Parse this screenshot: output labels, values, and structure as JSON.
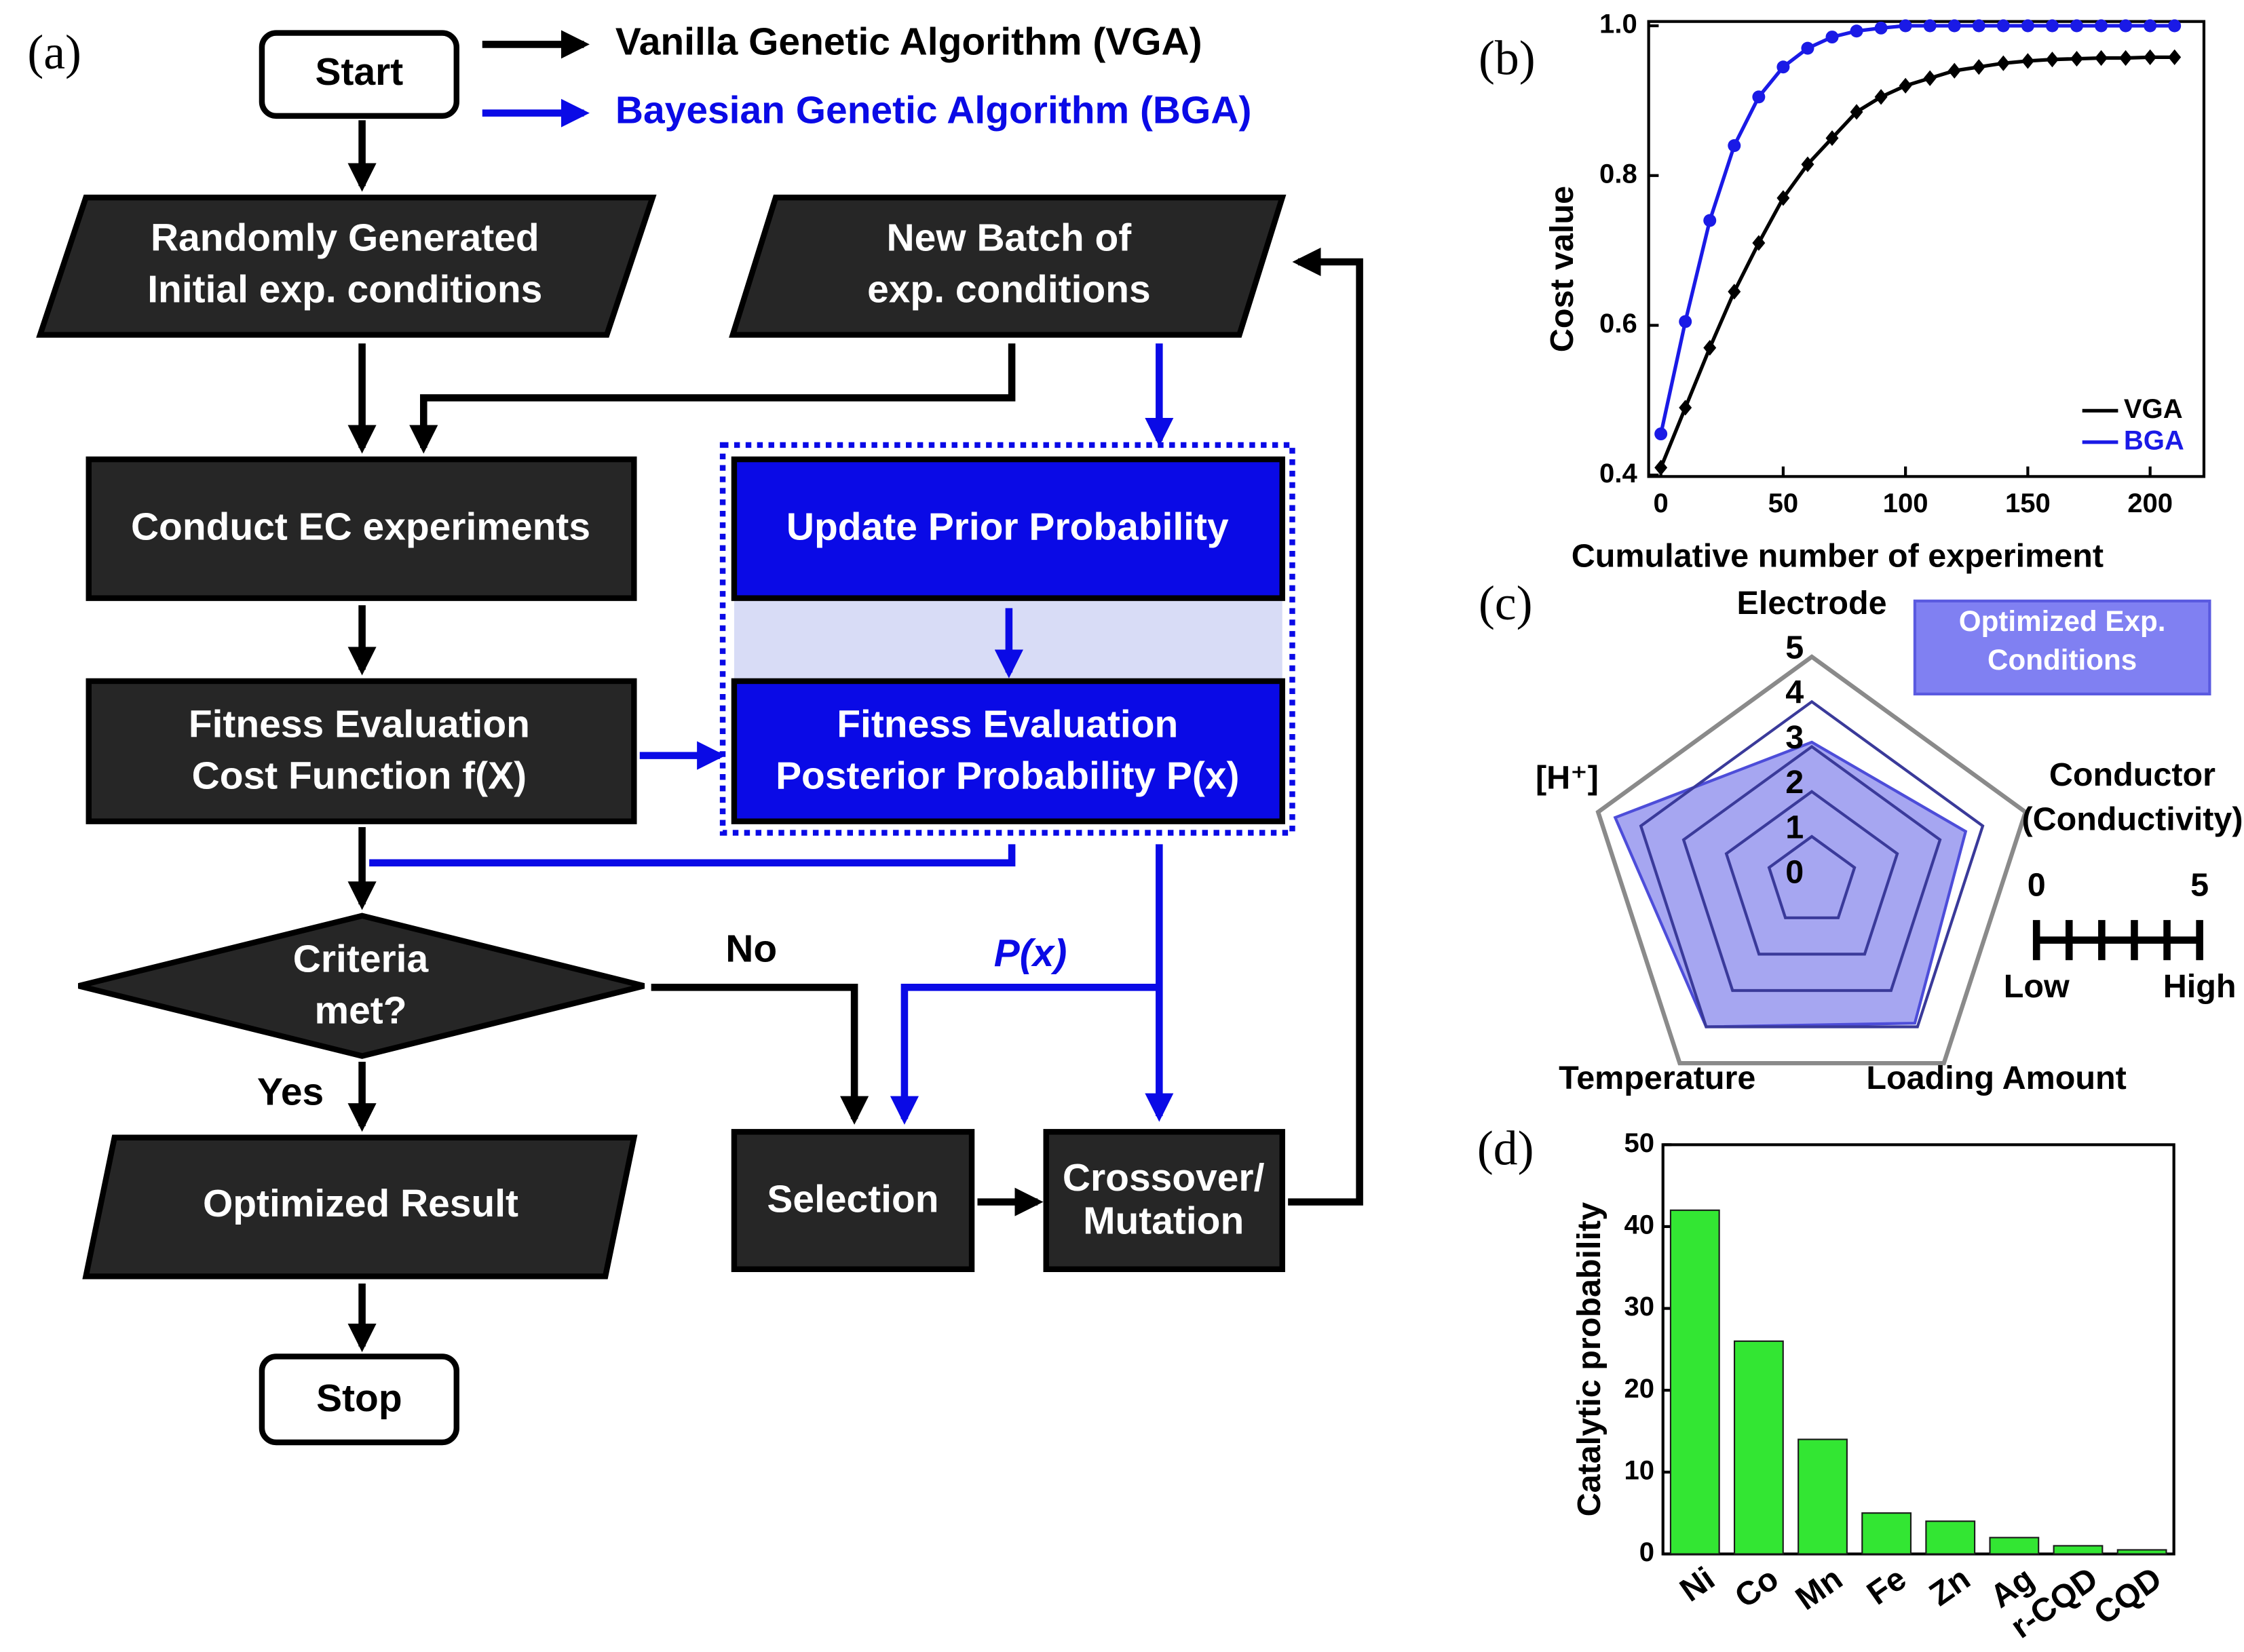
{
  "panel_labels": [
    "(a)",
    "(b)",
    "(c)",
    "(d)"
  ],
  "flowchart": {
    "legend": [
      {
        "label": "Vanilla Genetic Algorithm (VGA)",
        "color": "#000000"
      },
      {
        "label": "Bayesian Genetic Algorithm (BGA)",
        "color": "#0a0ae6"
      }
    ],
    "nodes": [
      {
        "lines": [
          "Start"
        ]
      },
      {
        "lines": [
          "Randomly Generated",
          "Initial exp. conditions"
        ]
      },
      {
        "lines": [
          "New Batch of",
          "exp. conditions"
        ]
      },
      {
        "lines": [
          "Conduct EC experiments"
        ]
      },
      {
        "lines": [
          "Update Prior Probability"
        ]
      },
      {
        "lines": [
          "Fitness Evaluation",
          "Cost Function f(X)"
        ]
      },
      {
        "lines": [
          "Fitness Evaluation",
          "Posterior Probability  P(x)"
        ]
      },
      {
        "lines": [
          "Criteria",
          "met?"
        ]
      },
      {
        "lines": [
          "Optimized Result"
        ]
      },
      {
        "lines": [
          "Selection"
        ]
      },
      {
        "lines": [
          "Crossover/",
          "Mutation"
        ]
      },
      {
        "lines": [
          "Stop"
        ]
      }
    ],
    "edge_labels": [
      "Yes",
      "No",
      "P(x)"
    ]
  },
  "chart_data": [
    {
      "type": "line",
      "xlabel": "Cumulative number of experiment",
      "ylabel": "Cost value",
      "x": [
        0,
        10,
        20,
        30,
        40,
        50,
        60,
        70,
        80,
        90,
        100,
        110,
        120,
        130,
        140,
        150,
        160,
        170,
        180,
        190,
        200,
        210
      ],
      "series": [
        {
          "name": "VGA",
          "color": "#000000",
          "marker": "diamond",
          "values": [
            0.41,
            0.49,
            0.57,
            0.645,
            0.71,
            0.77,
            0.815,
            0.85,
            0.885,
            0.905,
            0.92,
            0.93,
            0.94,
            0.945,
            0.95,
            0.953,
            0.955,
            0.956,
            0.957,
            0.957,
            0.958,
            0.958
          ]
        },
        {
          "name": "BGA",
          "color": "#1a1ae6",
          "marker": "circle",
          "values": [
            0.455,
            0.605,
            0.74,
            0.84,
            0.905,
            0.945,
            0.97,
            0.985,
            0.993,
            0.997,
            1.0,
            1.0,
            1.0,
            1.0,
            1.0,
            1.0,
            1.0,
            1.0,
            1.0,
            1.0,
            1.0,
            1.0
          ]
        }
      ],
      "xlim": [
        -5,
        222
      ],
      "ylim": [
        0.4,
        1.0
      ],
      "xticks": [
        0,
        50,
        100,
        150,
        200
      ],
      "yticks": [
        0.4,
        0.6,
        0.8,
        {
          "value": 1,
          "label": "1.0"
        }
      ],
      "legend": "lower right"
    },
    {
      "type": "radar",
      "axes": [
        [
          "Electrode"
        ],
        [
          "Conductor",
          "(Conductivity)"
        ],
        [
          "Loading Amount"
        ],
        [
          "Temperature"
        ],
        [
          "[H⁺]"
        ]
      ],
      "rlim": [
        0,
        5
      ],
      "rticks": [
        0,
        1,
        2,
        3,
        4,
        5
      ],
      "series": [
        {
          "name": "Optimized Exp. Conditions",
          "color": "#6a6ae8",
          "values": [
            3.1,
            3.6,
            3.9,
            4.0,
            4.6
          ]
        }
      ],
      "scale_bar": {
        "min": 0,
        "max": 5,
        "min_label": "Low",
        "max_label": "High"
      }
    },
    {
      "type": "bar",
      "ylabel": "Catalytic probability",
      "categories": [
        "Ni",
        "Co",
        "Mn",
        "Fe",
        "Zn",
        "Ag",
        "r-CQD",
        "CQD"
      ],
      "values": [
        42,
        26,
        14,
        5,
        4,
        2,
        1,
        0.5
      ],
      "color": "#33e633",
      "ylim": [
        0,
        50
      ],
      "yticks": [
        0,
        10,
        20,
        30,
        40,
        50
      ]
    }
  ]
}
